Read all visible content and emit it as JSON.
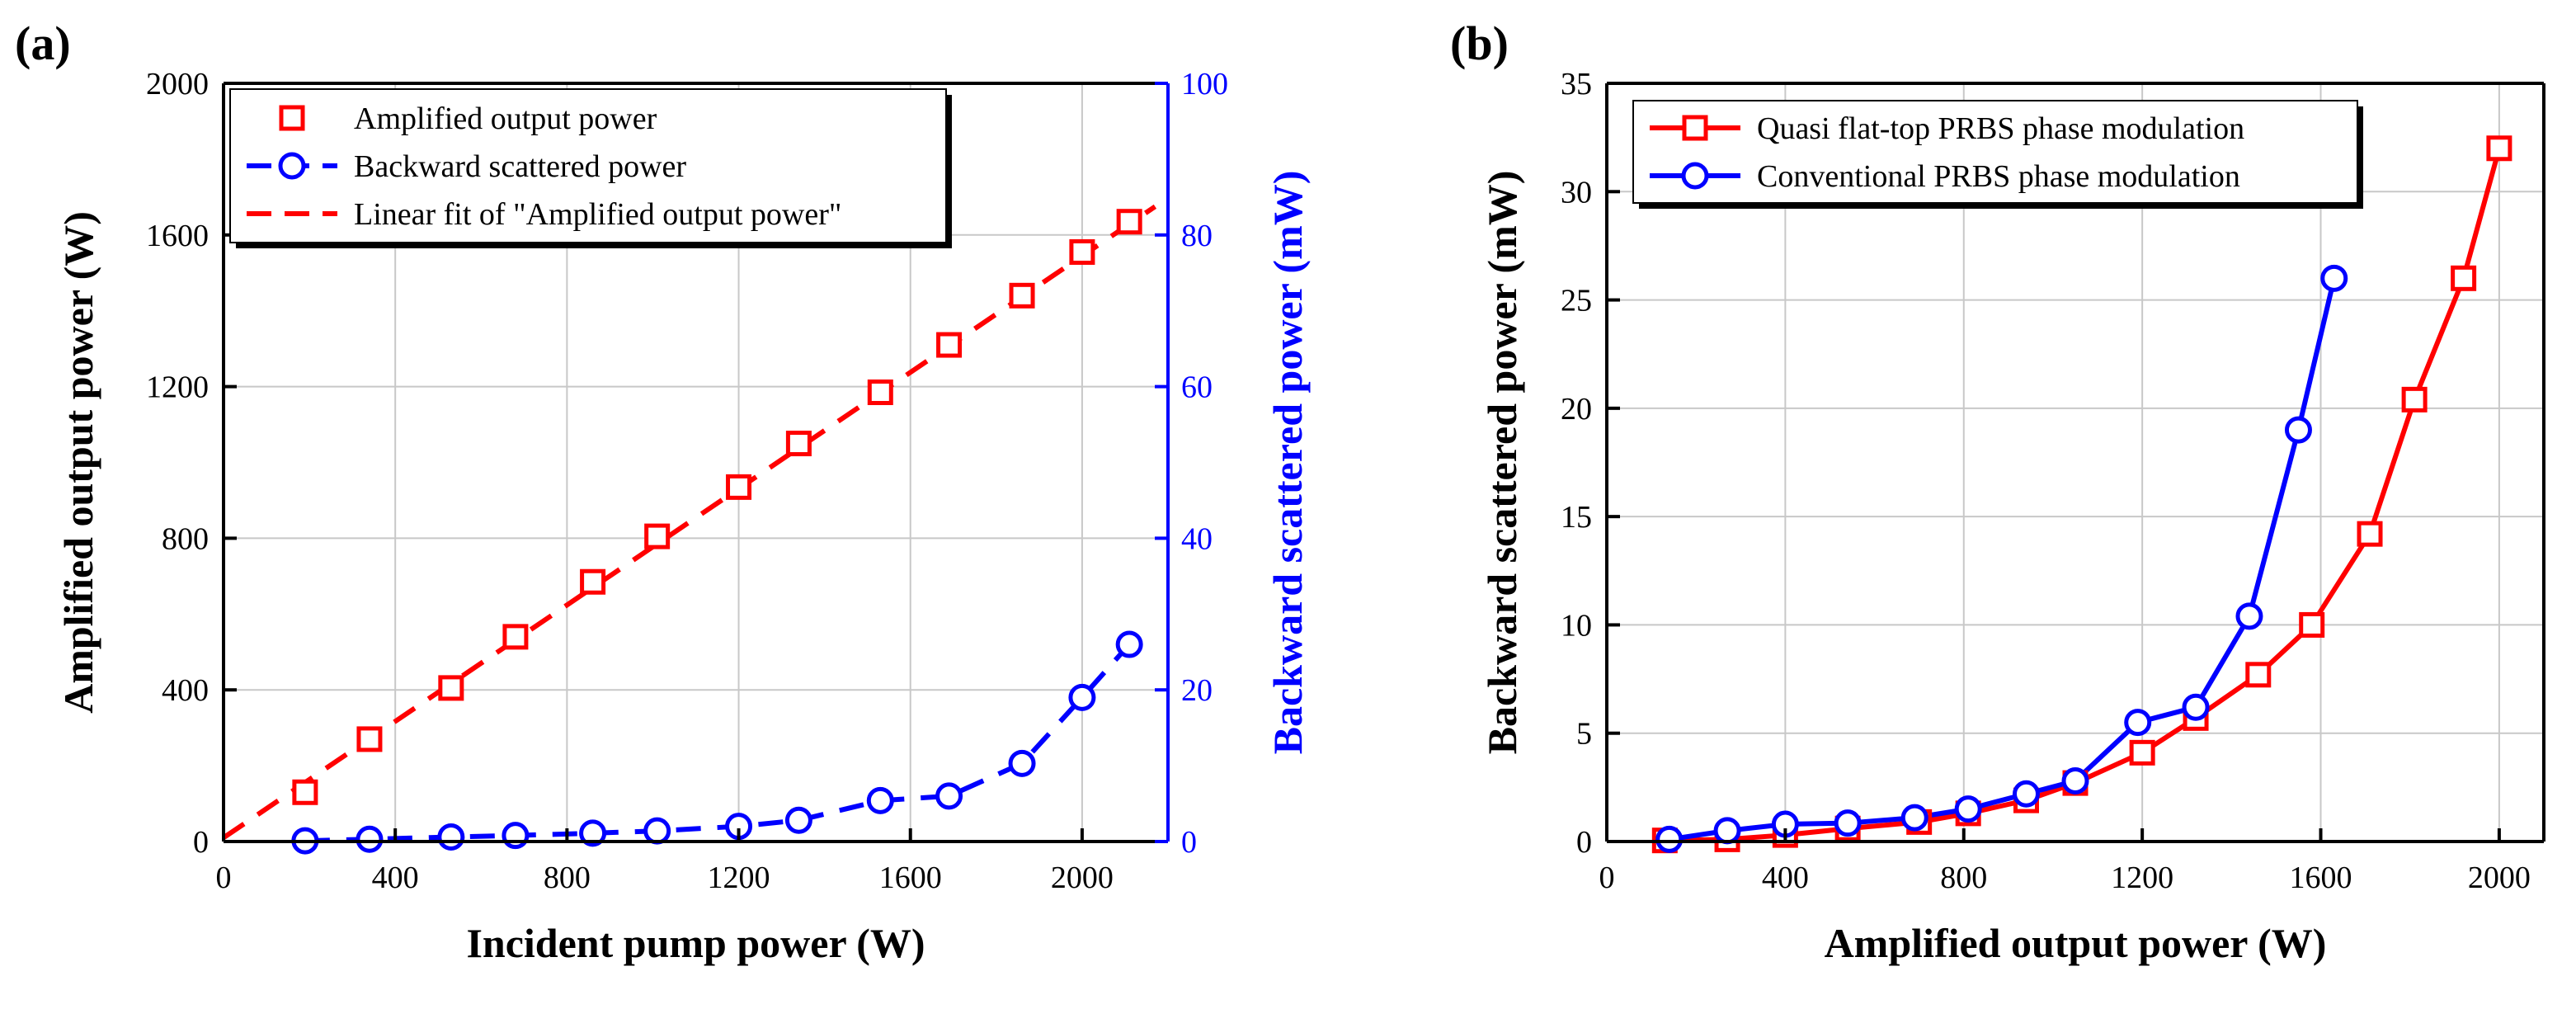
{
  "colors": {
    "red": "#ff0000",
    "blue": "#0000ff",
    "grid": "#c8c8c8",
    "axis": "#000000"
  },
  "chart_data": [
    {
      "panel_label": "(a)",
      "type": "scatter",
      "xlabel": "Incident pump power (W)",
      "ylabel": "Amplified output power (W)",
      "y2label": "Backward scattered power (mW)",
      "xlim": [
        0,
        2200
      ],
      "ylim": [
        0,
        2000
      ],
      "y2lim": [
        0,
        100
      ],
      "xticks": [
        0,
        400,
        800,
        1200,
        1600,
        2000
      ],
      "yticks": [
        0,
        400,
        800,
        1200,
        1600,
        2000
      ],
      "y2ticks": [
        0,
        20,
        40,
        60,
        80,
        100
      ],
      "grid": true,
      "legend_position": "top-left",
      "series": [
        {
          "name": "Amplified output power",
          "axis": "left",
          "color": "#ff0000",
          "marker": "square",
          "line": "none",
          "x": [
            190,
            340,
            530,
            680,
            860,
            1010,
            1200,
            1340,
            1530,
            1690,
            1860,
            2000,
            2110
          ],
          "y": [
            130,
            270,
            405,
            540,
            685,
            805,
            935,
            1050,
            1185,
            1310,
            1440,
            1555,
            1635
          ]
        },
        {
          "name": "Backward scattered power",
          "axis": "right",
          "color": "#0000ff",
          "marker": "circle",
          "line": "dashed",
          "x": [
            190,
            340,
            530,
            680,
            860,
            1010,
            1200,
            1340,
            1530,
            1690,
            1860,
            2000,
            2110
          ],
          "y": [
            0.1,
            0.3,
            0.6,
            0.8,
            1.1,
            1.4,
            2.0,
            2.8,
            5.4,
            6.0,
            10.3,
            19.0,
            26.0
          ]
        },
        {
          "name": "Linear fit of \"Amplified output power\"",
          "axis": "left",
          "color": "#ff0000",
          "marker": "none",
          "line": "dashed",
          "x": [
            0,
            2170
          ],
          "y": [
            10,
            1675
          ]
        }
      ]
    },
    {
      "panel_label": "(b)",
      "type": "line",
      "xlabel": "Amplified output power (W)",
      "ylabel": "Backward scattered power (mW)",
      "xlim": [
        0,
        2100
      ],
      "ylim": [
        0,
        35
      ],
      "xticks": [
        0,
        400,
        800,
        1200,
        1600,
        2000
      ],
      "yticks": [
        0,
        5,
        10,
        15,
        20,
        25,
        30,
        35
      ],
      "grid": true,
      "legend_position": "top-left",
      "series": [
        {
          "name": "Quasi flat-top PRBS phase modulation",
          "color": "#ff0000",
          "marker": "square",
          "line": "solid",
          "x": [
            130,
            270,
            400,
            540,
            700,
            810,
            940,
            1050,
            1200,
            1320,
            1460,
            1580,
            1710,
            1810,
            1920,
            2000
          ],
          "y": [
            0.05,
            0.1,
            0.3,
            0.6,
            0.9,
            1.3,
            1.9,
            2.7,
            4.1,
            5.7,
            7.7,
            10.0,
            14.2,
            20.4,
            26.0,
            32.0
          ]
        },
        {
          "name": "Conventional PRBS phase modulation",
          "color": "#0000ff",
          "marker": "circle",
          "line": "solid",
          "x": [
            140,
            270,
            400,
            540,
            690,
            810,
            940,
            1050,
            1190,
            1320,
            1440,
            1550,
            1630
          ],
          "y": [
            0.1,
            0.5,
            0.8,
            0.85,
            1.1,
            1.5,
            2.2,
            2.8,
            5.5,
            6.2,
            10.4,
            19.0,
            26.0
          ]
        }
      ]
    }
  ]
}
